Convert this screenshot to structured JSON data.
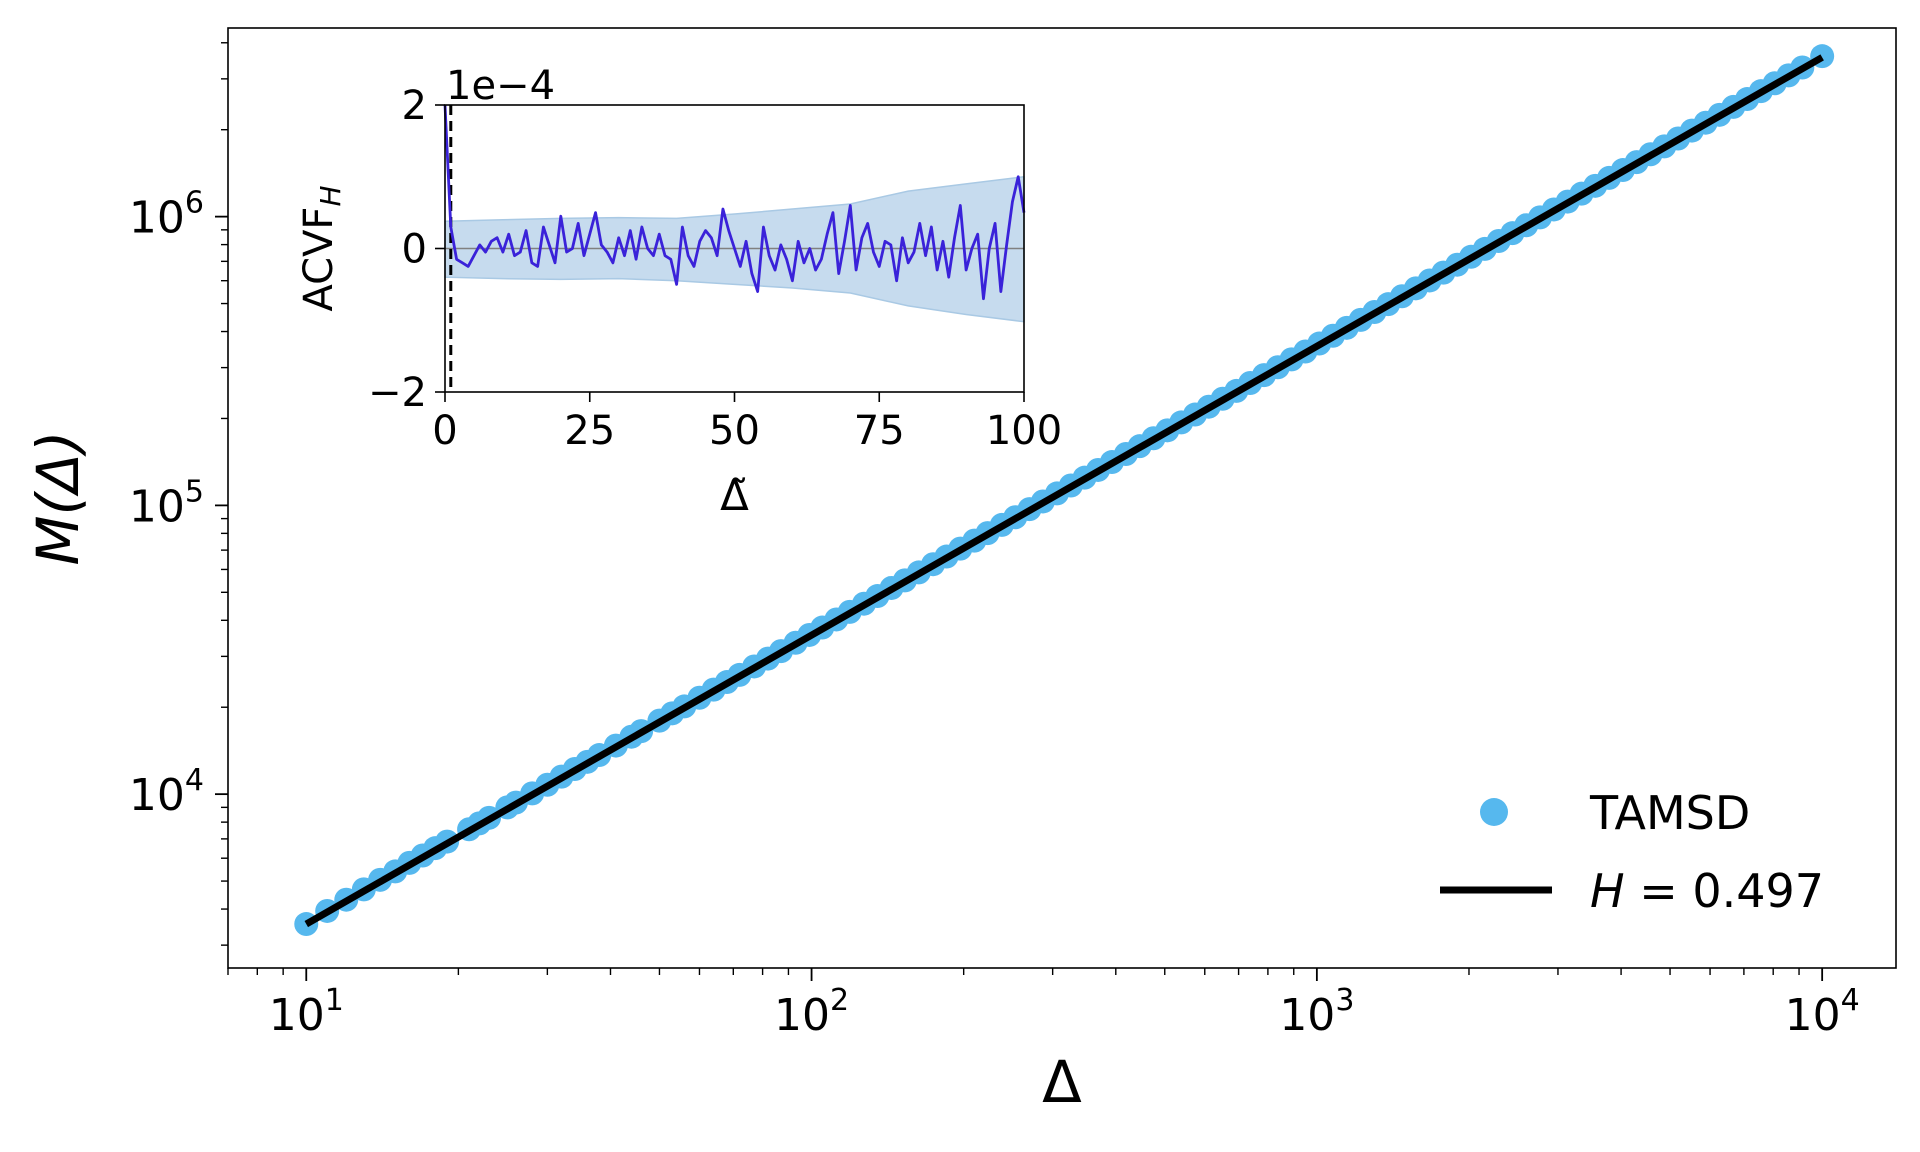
{
  "colors": {
    "points": "#56b8ee",
    "fit_line": "#000000",
    "acvf_line": "#3a22d9",
    "band_fill": "#c6dbee",
    "band_edge": "#a9c9e4",
    "zero_line": "#808080"
  },
  "chart_data": [
    {
      "type": "scatter",
      "role": "main",
      "xlabel": "Δ",
      "ylabel": "M(Δ)",
      "xscale": "log",
      "yscale": "log",
      "xlim": [
        7,
        14000
      ],
      "ylim": [
        2500,
        4500000
      ],
      "x_ticks": [
        {
          "value": 10,
          "base": "10",
          "exp": "1"
        },
        {
          "value": 100,
          "base": "10",
          "exp": "2"
        },
        {
          "value": 1000,
          "base": "10",
          "exp": "3"
        },
        {
          "value": 10000,
          "base": "10",
          "exp": "4"
        }
      ],
      "y_ticks": [
        {
          "value": 10000,
          "base": "10",
          "exp": "4"
        },
        {
          "value": 100000,
          "base": "10",
          "exp": "5"
        },
        {
          "value": 1000000,
          "base": "10",
          "exp": "6"
        }
      ],
      "series": [
        {
          "name": "TAMSD",
          "kind": "points",
          "x": [
            10,
            11,
            12,
            13,
            14,
            15,
            16,
            17,
            18,
            19,
            21,
            22,
            23,
            25,
            26,
            28,
            30,
            32,
            34,
            36,
            38,
            41,
            44,
            46,
            50,
            53,
            56,
            60,
            64,
            68,
            72,
            77,
            82,
            87,
            93,
            99,
            105,
            112,
            119,
            127,
            135,
            144,
            153,
            163,
            174,
            185,
            197,
            210,
            223,
            238,
            253,
            270,
            287,
            306,
            326,
            347,
            369,
            393,
            419,
            446,
            475,
            506,
            539,
            574,
            611,
            651,
            693,
            738,
            786,
            837,
            891,
            949,
            1011,
            1076,
            1146,
            1221,
            1300,
            1384,
            1474,
            1570,
            1672,
            1780,
            1896,
            2019,
            2150,
            2290,
            2438,
            2597,
            2765,
            2945,
            3136,
            3340,
            3556,
            3787,
            4033,
            4295,
            4574,
            4871,
            5187,
            5524,
            5882,
            6264,
            6671,
            7104,
            7565,
            8056,
            8579,
            9136,
            10000
          ],
          "y": [
            3550,
            3940,
            4310,
            4680,
            5050,
            5400,
            5780,
            6130,
            6500,
            6850,
            7560,
            7920,
            8280,
            9000,
            9350,
            10060,
            10780,
            11500,
            12220,
            12940,
            13660,
            14730,
            15810,
            16530,
            17970,
            19050,
            20130,
            21570,
            23010,
            24450,
            25880,
            27680,
            29480,
            31280,
            33440,
            35590,
            37750,
            40270,
            42780,
            45660,
            48540,
            51770,
            55000,
            58600,
            62560,
            66510,
            70830,
            75500,
            80170,
            85570,
            90960,
            97070,
            103180,
            110010,
            117200,
            124750,
            132660,
            141290,
            150640,
            160340,
            170770,
            181910,
            193780,
            206360,
            219660,
            234040,
            249140,
            265320,
            282580,
            300910,
            320330,
            341180,
            363470,
            386840,
            412000,
            438960,
            467360,
            497560,
            529920,
            564430,
            601100,
            639930,
            681630,
            725850,
            772950,
            823280,
            876490,
            933650,
            994050,
            1058760,
            1127420,
            1200760,
            1278410,
            1361460,
            1449900,
            1544090,
            1644390,
            1751170,
            1864760,
            1985920,
            2114610,
            2251950,
            2398270,
            2553930,
            2719660,
            2896180,
            3084200,
            3284440,
            3595000
          ]
        },
        {
          "name": "H = 0.497",
          "legend_math": "H",
          "legend_value": " = 0.497",
          "kind": "line",
          "x": [
            10,
            10000
          ],
          "y": [
            3550,
            3560000
          ]
        }
      ],
      "legend": {
        "placement": "lower-right"
      }
    },
    {
      "type": "line",
      "role": "inset",
      "xlabel": "Δ̃",
      "ylabel_main": "ACVF",
      "ylabel_sub": "H",
      "offset_label": "1e−4",
      "xlim": [
        0,
        100
      ],
      "ylim": [
        -2,
        2
      ],
      "x_ticks": [
        {
          "value": 0,
          "label": "0"
        },
        {
          "value": 25,
          "label": "25"
        },
        {
          "value": 50,
          "label": "50"
        },
        {
          "value": 75,
          "label": "75"
        },
        {
          "value": 100,
          "label": "100"
        }
      ],
      "y_ticks": [
        {
          "value": -2,
          "label": "−2"
        },
        {
          "value": 0,
          "label": "0"
        },
        {
          "value": 2,
          "label": "2"
        }
      ],
      "dashed_vline_x": 1,
      "zero_line": true,
      "band_upper": [
        [
          0,
          0.38
        ],
        [
          10,
          0.4
        ],
        [
          20,
          0.42
        ],
        [
          30,
          0.43
        ],
        [
          40,
          0.42
        ],
        [
          50,
          0.48
        ],
        [
          60,
          0.55
        ],
        [
          70,
          0.62
        ],
        [
          80,
          0.8
        ],
        [
          90,
          0.9
        ],
        [
          100,
          1.0
        ]
      ],
      "band_lower": [
        [
          0,
          -0.4
        ],
        [
          10,
          -0.42
        ],
        [
          20,
          -0.43
        ],
        [
          30,
          -0.42
        ],
        [
          40,
          -0.45
        ],
        [
          50,
          -0.5
        ],
        [
          60,
          -0.55
        ],
        [
          70,
          -0.62
        ],
        [
          80,
          -0.8
        ],
        [
          90,
          -0.92
        ],
        [
          100,
          -1.02
        ]
      ],
      "series": [
        {
          "name": "",
          "x": [
            0,
            1,
            2,
            3,
            4,
            5,
            6,
            7,
            8,
            9,
            10,
            11,
            12,
            13,
            14,
            15,
            16,
            17,
            18,
            19,
            20,
            21,
            22,
            23,
            24,
            25,
            26,
            27,
            28,
            29,
            30,
            31,
            32,
            33,
            34,
            35,
            36,
            37,
            38,
            39,
            40,
            41,
            42,
            43,
            44,
            45,
            46,
            47,
            48,
            49,
            50,
            51,
            52,
            53,
            54,
            55,
            56,
            57,
            58,
            59,
            60,
            61,
            62,
            63,
            64,
            65,
            66,
            67,
            68,
            69,
            70,
            71,
            72,
            73,
            74,
            75,
            76,
            77,
            78,
            79,
            80,
            81,
            82,
            83,
            84,
            85,
            86,
            87,
            88,
            89,
            90,
            91,
            92,
            93,
            94,
            95,
            96,
            97,
            98,
            99,
            100
          ],
          "y": [
            2.0,
            0.3,
            -0.15,
            -0.2,
            -0.25,
            -0.1,
            0.05,
            -0.05,
            0.1,
            0.15,
            -0.05,
            0.2,
            -0.1,
            -0.05,
            0.25,
            -0.2,
            -0.25,
            0.3,
            0.05,
            -0.2,
            0.45,
            -0.05,
            0.0,
            0.35,
            -0.1,
            0.2,
            0.5,
            0.05,
            -0.05,
            -0.2,
            0.15,
            -0.1,
            0.25,
            -0.15,
            0.3,
            0.0,
            -0.1,
            0.2,
            -0.1,
            -0.15,
            -0.5,
            0.3,
            -0.1,
            -0.25,
            0.1,
            0.25,
            0.15,
            -0.1,
            0.55,
            0.25,
            0.0,
            -0.25,
            0.1,
            -0.35,
            -0.6,
            0.3,
            -0.1,
            -0.3,
            0.05,
            -0.15,
            -0.45,
            0.1,
            -0.2,
            0.0,
            -0.3,
            -0.15,
            0.2,
            0.5,
            -0.35,
            0.1,
            0.6,
            -0.3,
            0.15,
            0.35,
            -0.05,
            -0.25,
            0.1,
            0.05,
            -0.45,
            0.15,
            -0.2,
            -0.05,
            0.35,
            -0.1,
            0.3,
            -0.3,
            0.1,
            -0.4,
            0.15,
            0.6,
            -0.3,
            0.0,
            0.2,
            -0.7,
            0.0,
            0.35,
            -0.6,
            0.05,
            0.65,
            1.0,
            0.5
          ]
        }
      ]
    }
  ]
}
